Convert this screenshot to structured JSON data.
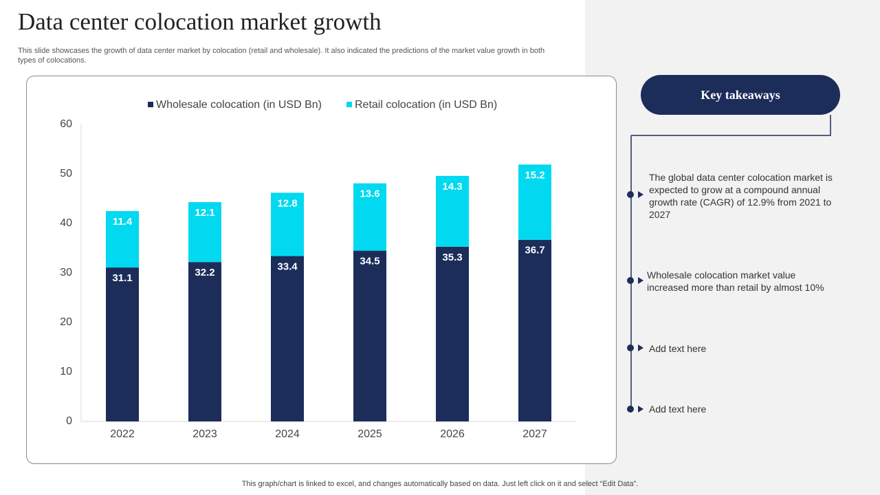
{
  "title": "Data center colocation market growth",
  "subtitle": "This slide showcases the growth of data center market by colocation (retail and wholesale). It also indicated the predictions of the market value growth in both types of colocations.",
  "chart_data": {
    "type": "stacked_bar",
    "categories": [
      "2022",
      "2023",
      "2024",
      "2025",
      "2026",
      "2027"
    ],
    "series": [
      {
        "name": "Wholesale colocation (in USD Bn)",
        "color": "#1c2d5a",
        "values": [
          31.1,
          32.2,
          33.4,
          34.5,
          35.3,
          36.7
        ]
      },
      {
        "name": "Retail colocation (in USD Bn)",
        "color": "#00d9f0",
        "values": [
          11.4,
          12.1,
          12.8,
          13.6,
          14.3,
          15.2
        ]
      }
    ],
    "ylim": [
      0,
      60
    ],
    "yticks": [
      0,
      10,
      20,
      30,
      40,
      50,
      60
    ],
    "grid": false,
    "legend": "top"
  },
  "takeaways": {
    "title": "Key takeaways",
    "items": [
      "The global data center colocation market is expected to grow at a compound annual growth rate (CAGR) of 12.9% from 2021 to 2027",
      "Wholesale colocation market value increased more than retail by almost 10%",
      "Add text here",
      "Add text here"
    ]
  },
  "footer": "This graph/chart is linked to excel, and changes automatically based on data. Just left click on it and select “Edit Data”."
}
